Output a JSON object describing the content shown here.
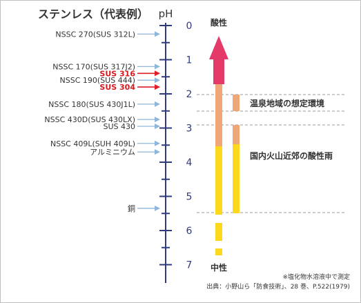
{
  "title": "ステンレス（代表例）",
  "axis": {
    "unit": "pH",
    "min": 0,
    "max": 7,
    "ticks": [
      "0",
      "1",
      "2",
      "3",
      "4",
      "5",
      "6",
      "7"
    ]
  },
  "colors": {
    "axis": "#2e3a7c",
    "arrow": "#8fb6da",
    "arrow_red": "#e01c24",
    "red_text": "#d6191f",
    "yellow": "#fcd71c",
    "orange": "#f0a777",
    "pink": "#e33a6a",
    "dash": "#9a9a9a"
  },
  "materials": [
    {
      "label": "NSSC 270(SUS 312L)",
      "ph": 0.25,
      "highlight": false
    },
    {
      "label": "NSSC 170(SUS 317J2)",
      "ph": 1.2,
      "highlight": false
    },
    {
      "label": "SUS 316",
      "ph": 1.4,
      "highlight": true
    },
    {
      "label": "NSSC 190(SUS 444)",
      "ph": 1.6,
      "highlight": false
    },
    {
      "label": "SUS 304",
      "ph": 1.8,
      "highlight": true
    },
    {
      "label": "NSSC 180(SUS 430J1L)",
      "ph": 2.3,
      "highlight": false
    },
    {
      "label": "NSSC 430D(SUS 430LX)",
      "ph": 2.75,
      "highlight": false
    },
    {
      "label": "SUS 430",
      "ph": 2.95,
      "highlight": false
    },
    {
      "label": "NSSC 409L(SUH 409L)",
      "ph": 3.45,
      "highlight": false
    },
    {
      "label": "アルミニウム",
      "ph": 3.7,
      "highlight": false
    },
    {
      "label": "銅",
      "ph": 5.35,
      "highlight": false
    }
  ],
  "scale": {
    "acidic_label": "酸性",
    "neutral_label": "中性"
  },
  "zones": [
    {
      "label": "温泉地域の想定環境"
    },
    {
      "label": "国内火山近郊の酸性雨"
    }
  ],
  "note": "※塩化物水溶液中で測定",
  "source": "出典：小野山ら「防食技術」、28 巻、P.522(1979)"
}
